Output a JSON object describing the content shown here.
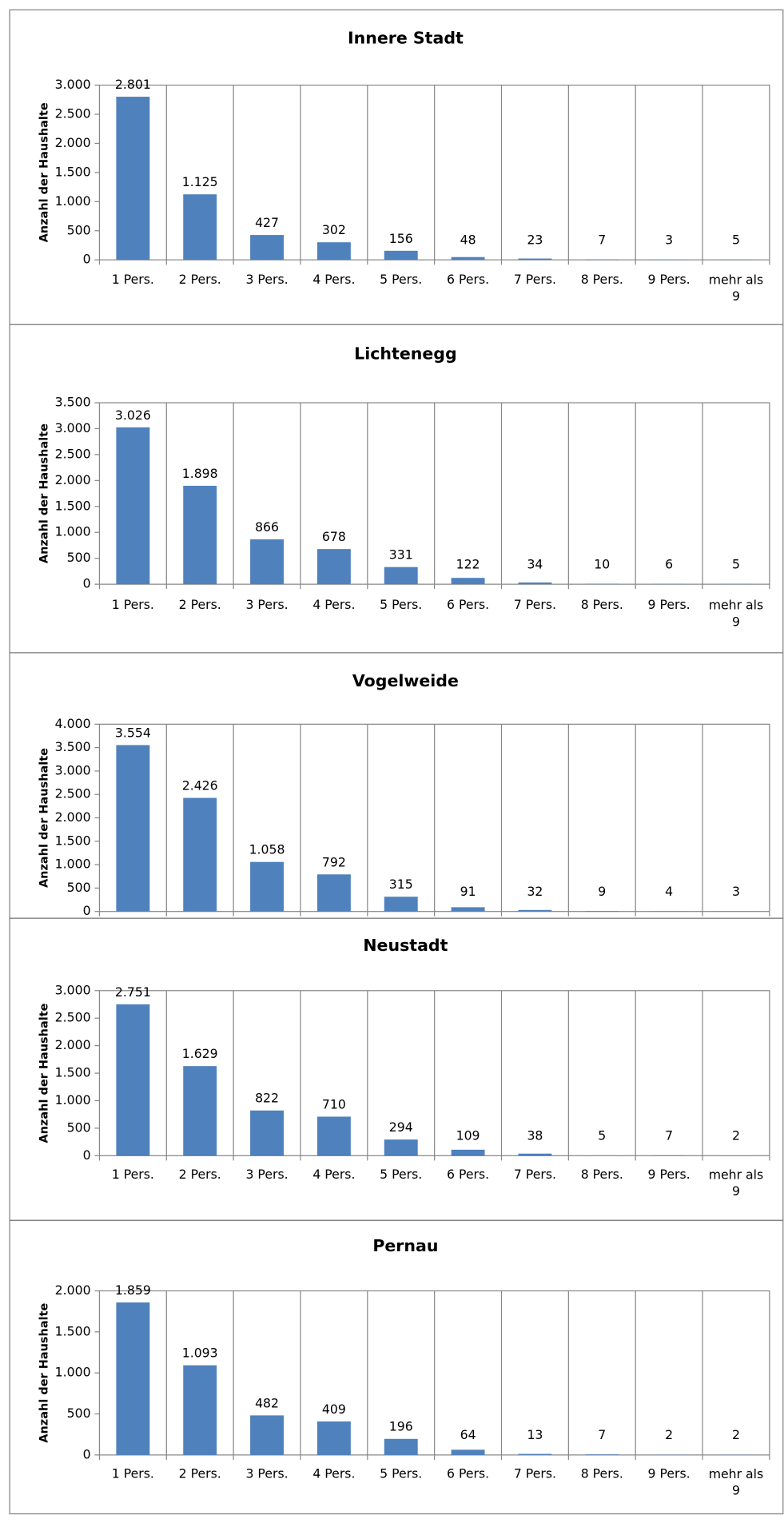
{
  "chart_data": [
    {
      "type": "bar",
      "title": "Innere Stadt",
      "y_label": "Anzahl der Haushalte",
      "categories": [
        "1 Pers.",
        "2 Pers.",
        "3 Pers.",
        "4 Pers.",
        "5 Pers.",
        "6 Pers.",
        "7 Pers.",
        "8 Pers.",
        "9 Pers.",
        "mehr als 9"
      ],
      "values": [
        2801,
        1125,
        427,
        302,
        156,
        48,
        23,
        7,
        3,
        5
      ],
      "value_labels": [
        "2.801",
        "1.125",
        "427",
        "302",
        "156",
        "48",
        "23",
        "7",
        "3",
        "5"
      ],
      "color": "#4f81bd",
      "ylim": [
        0,
        3000
      ],
      "yticks": [
        0,
        {
          "value": 500,
          "label": "500"
        },
        {
          "value": 1000,
          "label": "1.000"
        },
        {
          "value": 1500,
          "label": "1.500"
        },
        {
          "value": 2000,
          "label": "2.000"
        },
        {
          "value": 2500,
          "label": "2.500"
        },
        {
          "value": 3000,
          "label": "3.000"
        }
      ]
    },
    {
      "type": "bar",
      "title": "Lichtenegg",
      "y_label": "Anzahl der Haushalte",
      "categories": [
        "1 Pers.",
        "2 Pers.",
        "3 Pers.",
        "4 Pers.",
        "5 Pers.",
        "6 Pers.",
        "7 Pers.",
        "8 Pers.",
        "9 Pers.",
        "mehr als 9"
      ],
      "values": [
        3026,
        1898,
        866,
        678,
        331,
        122,
        34,
        10,
        6,
        5
      ],
      "value_labels": [
        "3.026",
        "1.898",
        "866",
        "678",
        "331",
        "122",
        "34",
        "10",
        "6",
        "5"
      ],
      "color": "#4f81bd",
      "ylim": [
        0,
        3500
      ],
      "yticks": [
        0,
        500,
        {
          "value": 1000,
          "label": "1.000"
        },
        {
          "value": 1500,
          "label": "1.500"
        },
        {
          "value": 2000,
          "label": "2.000"
        },
        {
          "value": 2500,
          "label": "2.500"
        },
        {
          "value": 3000,
          "label": "3.000"
        },
        {
          "value": 3500,
          "label": "3.500"
        }
      ]
    },
    {
      "type": "bar",
      "title": "Vogelweide",
      "y_label": "Anzahl der Haushalte",
      "values": [
        3554,
        2426,
        1058,
        792,
        315,
        91,
        32,
        9,
        4,
        3
      ],
      "value_labels": [
        "3.554",
        "2.426",
        "1.058",
        "792",
        "315",
        "91",
        "32",
        "9",
        "4",
        "3"
      ],
      "color": "#4f81bd",
      "ylim": [
        0,
        4000
      ],
      "yticks": [
        0,
        500,
        {
          "value": 1000,
          "label": "1.000"
        },
        {
          "value": 1500,
          "label": "1.500"
        },
        {
          "value": 2000,
          "label": "2.000"
        },
        {
          "value": 2500,
          "label": "2.500"
        },
        {
          "value": 3000,
          "label": "3.000"
        },
        {
          "value": 3500,
          "label": "3.500"
        },
        {
          "value": 4000,
          "label": "4.000"
        }
      ]
    },
    {
      "type": "bar",
      "title": "Neustadt",
      "y_label": "Anzahl der Haushalte",
      "categories": [
        "1 Pers.",
        "2 Pers.",
        "3 Pers.",
        "4 Pers.",
        "5 Pers.",
        "6 Pers.",
        "7 Pers.",
        "8 Pers.",
        "9 Pers.",
        "mehr als 9"
      ],
      "values": [
        2751,
        1629,
        822,
        710,
        294,
        109,
        38,
        5,
        7,
        2
      ],
      "value_labels": [
        "2.751",
        "1.629",
        "822",
        "710",
        "294",
        "109",
        "38",
        "5",
        "7",
        "2"
      ],
      "color": "#4f81bd",
      "ylim": [
        0,
        3000
      ],
      "yticks": [
        0,
        500,
        {
          "value": 1000,
          "label": "1.000"
        },
        {
          "value": 1500,
          "label": "1.500"
        },
        {
          "value": 2000,
          "label": "2.000"
        },
        {
          "value": 2500,
          "label": "2.500"
        },
        {
          "value": 3000,
          "label": "3.000"
        }
      ]
    },
    {
      "type": "bar",
      "title": "Pernau",
      "y_label": "Anzahl der Haushalte",
      "categories": [
        "1 Pers.",
        "2 Pers.",
        "3 Pers.",
        "4 Pers.",
        "5 Pers.",
        "6 Pers.",
        "7 Pers.",
        "8 Pers.",
        "9 Pers.",
        "mehr als 9"
      ],
      "values": [
        1859,
        1093,
        482,
        409,
        196,
        64,
        13,
        7,
        2,
        2
      ],
      "value_labels": [
        "1.859",
        "1.093",
        "482",
        "409",
        "196",
        "64",
        "13",
        "7",
        "2",
        "2"
      ],
      "color": "#4f81bd",
      "ylim": [
        0,
        2000
      ],
      "yticks": [
        0,
        500,
        {
          "value": 1000,
          "label": "1.000"
        },
        {
          "value": 1500,
          "label": "1.500"
        },
        {
          "value": 2000,
          "label": "2.000"
        }
      ]
    }
  ]
}
